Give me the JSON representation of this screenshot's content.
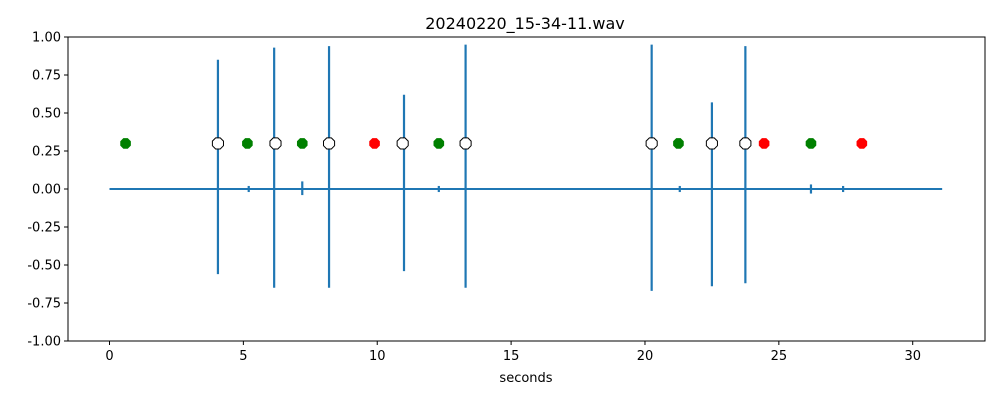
{
  "chart_data": {
    "type": "line",
    "title": "20240220_15-34-11.wav",
    "xlabel": "seconds",
    "ylabel": "",
    "xlim": [
      -1.55,
      32.7
    ],
    "ylim": [
      -1.0,
      1.0
    ],
    "x_ticks": [
      0,
      5,
      10,
      15,
      20,
      25,
      30
    ],
    "y_ticks": [
      -1.0,
      -0.75,
      -0.5,
      -0.25,
      0.0,
      0.25,
      0.5,
      0.75,
      1.0
    ],
    "grid": false,
    "colors": {
      "waveform": "#1f77b4",
      "green_markers": "#008000",
      "red_markers": "#ff0000",
      "hollow_markers_edge": "#000000"
    },
    "waveform": {
      "duration": 31.1,
      "baseline": 0.0,
      "spikes": [
        {
          "x": 4.05,
          "max": 0.85,
          "min": -0.56
        },
        {
          "x": 6.15,
          "max": 0.93,
          "min": -0.65
        },
        {
          "x": 8.2,
          "max": 0.94,
          "min": -0.65
        },
        {
          "x": 11.0,
          "max": 0.62,
          "min": -0.54
        },
        {
          "x": 13.3,
          "max": 0.95,
          "min": -0.65
        },
        {
          "x": 20.25,
          "max": 0.95,
          "min": -0.67
        },
        {
          "x": 22.5,
          "max": 0.57,
          "min": -0.64
        },
        {
          "x": 23.75,
          "max": 0.94,
          "min": -0.62
        },
        {
          "x": 7.2,
          "max": 0.05,
          "min": -0.04
        },
        {
          "x": 5.2,
          "max": 0.02,
          "min": -0.02
        },
        {
          "x": 12.3,
          "max": 0.02,
          "min": -0.02
        },
        {
          "x": 21.3,
          "max": 0.02,
          "min": -0.02
        },
        {
          "x": 26.2,
          "max": 0.03,
          "min": -0.03
        },
        {
          "x": 27.4,
          "max": 0.02,
          "min": -0.02
        }
      ]
    },
    "series": [
      {
        "marker": "filled",
        "color": "#008000",
        "x": [
          0.6,
          5.15,
          7.2,
          12.3,
          21.25,
          26.2
        ],
        "y": [
          0.3,
          0.3,
          0.3,
          0.3,
          0.3,
          0.3
        ]
      },
      {
        "marker": "filled",
        "color": "#ff0000",
        "x": [
          9.9,
          24.45,
          28.1
        ],
        "y": [
          0.3,
          0.3,
          0.3
        ]
      },
      {
        "marker": "hollow",
        "color": "#000000",
        "x": [
          4.05,
          6.2,
          8.2,
          10.95,
          13.3,
          20.25,
          22.5,
          23.75
        ],
        "y": [
          0.3,
          0.3,
          0.3,
          0.3,
          0.3,
          0.3,
          0.3,
          0.3
        ]
      }
    ]
  }
}
